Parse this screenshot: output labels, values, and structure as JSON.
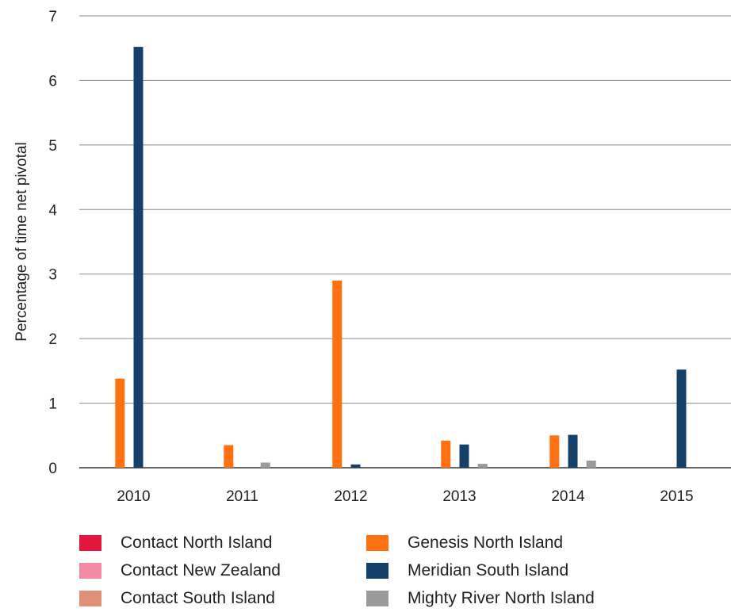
{
  "chart_data": {
    "type": "bar",
    "categories": [
      "2010",
      "2011",
      "2012",
      "2013",
      "2014",
      "2015"
    ],
    "ylabel": "Percentage of time net pivotal",
    "xlabel": "",
    "ylim": [
      0,
      7
    ],
    "yticks": [
      0,
      1,
      2,
      3,
      4,
      5,
      6,
      7
    ],
    "grid": true,
    "legend_position": "bottom",
    "series": [
      {
        "name": "Contact North Island",
        "color": "#e3173e",
        "values": [
          0,
          0,
          0,
          0,
          0,
          0
        ]
      },
      {
        "name": "Genesis North Island",
        "color": "#ff7013",
        "values": [
          1.38,
          0.35,
          2.9,
          0.42,
          0.5,
          0
        ]
      },
      {
        "name": "Contact New Zealand",
        "color": "#f28ba3",
        "values": [
          0,
          0,
          0,
          0,
          0,
          0
        ]
      },
      {
        "name": "Meridian South Island",
        "color": "#15406a",
        "values": [
          6.52,
          0,
          0.05,
          0.36,
          0.51,
          1.52
        ]
      },
      {
        "name": "Contact South Island",
        "color": "#e09079",
        "values": [
          0,
          0,
          0,
          0,
          0,
          0
        ]
      },
      {
        "name": "Mighty River North Island",
        "color": "#9a9a9a",
        "values": [
          0,
          0.08,
          0,
          0.06,
          0.11,
          0
        ]
      }
    ]
  }
}
